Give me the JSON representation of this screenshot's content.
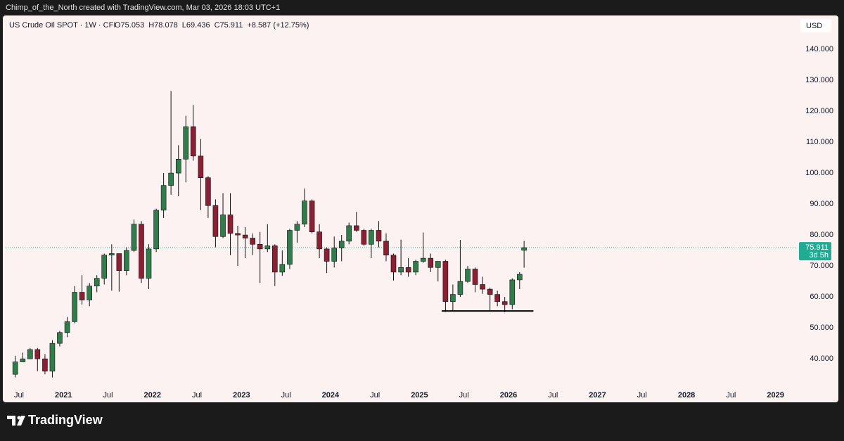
{
  "header": {
    "credit": "Chimp_of_the_North created with TradingView.com, Mar 03, 2026 18:03 UTC+1"
  },
  "chart_data": {
    "type": "candlestick",
    "symbol": "US Crude Oil SPOT · 1W · CFI",
    "ohlc_labels": [
      "O75.053",
      "H78.078",
      "L69.436",
      "C75.911",
      "+8.587 (+12.75%)"
    ],
    "currency": "USD",
    "x": [
      2020.458,
      2020.542,
      2020.625,
      2020.708,
      2020.792,
      2020.875,
      2020.958,
      2021.042,
      2021.125,
      2021.208,
      2021.292,
      2021.375,
      2021.458,
      2021.542,
      2021.625,
      2021.708,
      2021.792,
      2021.875,
      2021.958,
      2022.042,
      2022.125,
      2022.208,
      2022.292,
      2022.375,
      2022.458,
      2022.542,
      2022.625,
      2022.708,
      2022.792,
      2022.875,
      2022.958,
      2023.042,
      2023.125,
      2023.208,
      2023.292,
      2023.375,
      2023.458,
      2023.542,
      2023.625,
      2023.708,
      2023.792,
      2023.875,
      2023.958,
      2024.042,
      2024.125,
      2024.208,
      2024.292,
      2024.375,
      2024.458,
      2024.542,
      2024.625,
      2024.708,
      2024.792,
      2024.875,
      2024.958,
      2025.042,
      2025.125,
      2025.208,
      2025.292,
      2025.375,
      2025.458,
      2025.542,
      2025.625,
      2025.708,
      2025.792,
      2025.875,
      2025.958,
      2026.042,
      2026.125,
      2026.175
    ],
    "open": [
      35,
      39,
      40,
      43,
      40,
      36,
      45,
      48.5,
      52,
      61.5,
      59,
      63.5,
      66,
      73.5,
      74,
      68.5,
      75,
      83.5,
      66,
      75.5,
      88,
      96,
      100,
      104.5,
      115,
      105.5,
      98.5,
      89.5,
      79.5,
      86.5,
      80.5,
      80,
      79,
      77,
      75.5,
      76.5,
      68,
      70.5,
      81.5,
      83.5,
      91,
      81,
      75.5,
      71.5,
      75.8,
      78,
      83,
      81.5,
      77,
      81.5,
      78,
      73.5,
      68,
      69.5,
      68,
      71.5,
      72.5,
      69.5,
      71.5,
      58.5,
      60.8,
      65,
      69,
      64,
      62.5,
      60.8,
      58.5,
      57.5,
      65.5,
      75.053
    ],
    "high": [
      41,
      42,
      43.5,
      43.5,
      41.5,
      46,
      49,
      53.5,
      63.5,
      67,
      64.5,
      67,
      74,
      77,
      74,
      76,
      85,
      84.5,
      77,
      88.5,
      100,
      126.5,
      109,
      118.5,
      122,
      111,
      99,
      91.5,
      93.5,
      93.5,
      83,
      82.5,
      80.5,
      81,
      83.5,
      77,
      75,
      82,
      84.5,
      95,
      91.5,
      83.5,
      76,
      79.5,
      80,
      84,
      87.5,
      82,
      82,
      84.5,
      80.5,
      74,
      78.5,
      72.5,
      72,
      80.8,
      74,
      71.5,
      72,
      64,
      78.4,
      70,
      69.5,
      66.5,
      63,
      62,
      60,
      66,
      68,
      78.078
    ],
    "low": [
      34,
      39,
      40,
      36,
      35,
      34,
      44,
      47,
      51.5,
      57.5,
      57,
      61.5,
      64,
      62,
      61.7,
      67,
      74.5,
      64.5,
      62.5,
      74.5,
      85.5,
      93,
      92.5,
      97,
      104,
      88,
      85.5,
      76,
      79,
      73.5,
      70,
      72.5,
      73.5,
      64.5,
      74.5,
      63.5,
      66.8,
      69,
      77.5,
      82.5,
      80.5,
      72.5,
      67.7,
      69.5,
      71.5,
      77,
      81,
      76.5,
      72.5,
      76,
      71.5,
      65.3,
      67,
      66.5,
      67,
      71,
      68,
      65,
      55.1,
      55.5,
      60,
      64.5,
      61.5,
      61,
      55.5,
      57,
      55,
      56,
      62.5,
      69.436
    ],
    "close": [
      39,
      40,
      43,
      40,
      36,
      45,
      48.5,
      52,
      61.5,
      59,
      63.5,
      66,
      73.5,
      74,
      68.5,
      75,
      83.5,
      66,
      75.5,
      88,
      96,
      100,
      104.5,
      115,
      105.5,
      98.5,
      89.5,
      79.5,
      86.5,
      80.5,
      80,
      79,
      77,
      75.5,
      76.5,
      68,
      70.5,
      81.5,
      83.5,
      91,
      81,
      75.5,
      71.5,
      75.8,
      78,
      83,
      81.5,
      77,
      81.5,
      78,
      73.5,
      68,
      69.5,
      68,
      71.5,
      72.5,
      69.5,
      71.5,
      58.5,
      60.8,
      65,
      69,
      64,
      62.5,
      60.8,
      58.5,
      57.5,
      65.5,
      67.3,
      75.911
    ],
    "up_color": "#2f7d4a",
    "down_color": "#8c1f33",
    "wick_color": "#111111",
    "xlim": [
      2020.35,
      2029.24
    ],
    "xticks": [
      {
        "value": 2020.5,
        "label": "Jul"
      },
      2021,
      {
        "value": 2021.5,
        "label": "Jul"
      },
      2022,
      {
        "value": 2022.5,
        "label": "Jul"
      },
      2023,
      {
        "value": 2023.5,
        "label": "Jul"
      },
      2024,
      {
        "value": 2024.5,
        "label": "Jul"
      },
      2025,
      {
        "value": 2025.5,
        "label": "Jul"
      },
      2026,
      {
        "value": 2026.5,
        "label": "Jul"
      },
      2027,
      {
        "value": 2027.5,
        "label": "Jul"
      },
      2028,
      {
        "value": 2028.5,
        "label": "Jul"
      },
      2029
    ],
    "ylim": [
      31.4,
      150
    ],
    "yticks": [
      {
        "value": 40,
        "label": "40.000"
      },
      {
        "value": 50,
        "label": "50.000"
      },
      {
        "value": 60,
        "label": "60.000"
      },
      {
        "value": 70,
        "label": "70.000"
      },
      {
        "value": 80,
        "label": "80.000"
      },
      {
        "value": 90,
        "label": "90.000"
      },
      {
        "value": 100,
        "label": "100.000"
      },
      {
        "value": 110,
        "label": "110.000"
      },
      {
        "value": 120,
        "label": "120.000"
      },
      {
        "value": 130,
        "label": "130.000"
      },
      {
        "value": 140,
        "label": "140.000"
      }
    ],
    "last_price": {
      "value": 75.911,
      "countdown": "3d 5h",
      "color": "#22ab94"
    },
    "support_line": {
      "y": 55.45,
      "x": [
        2025.25,
        2026.28
      ]
    }
  },
  "footer": {
    "brand": "TradingView"
  }
}
